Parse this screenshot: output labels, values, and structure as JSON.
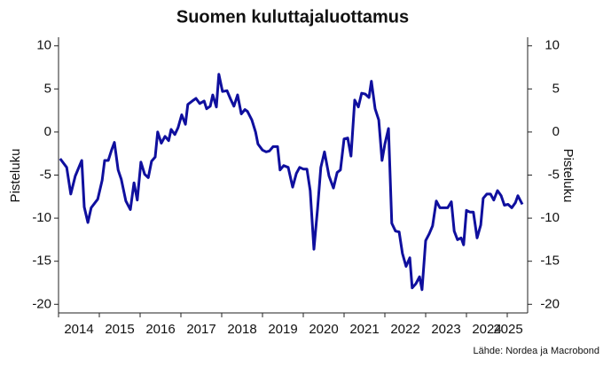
{
  "chart_data": {
    "type": "line",
    "title": "Suomen kuluttajaluottamus",
    "y_label": "Pisteluku",
    "y2_label": "Pisteluku",
    "source": "Lähde: Nordea ja Macrobond",
    "xlim": [
      2014,
      2025.5
    ],
    "xticks": [
      2014,
      2015,
      2016,
      2017,
      2018,
      2019,
      2020,
      2021,
      2022,
      2023,
      2024,
      2025
    ],
    "ylim": [
      -21,
      11
    ],
    "yticks": [
      -20,
      -15,
      -10,
      -5,
      0,
      5,
      10
    ],
    "y2lim": [
      -21,
      11
    ],
    "y2ticks": [
      -20,
      -15,
      -10,
      -5,
      0,
      5,
      10
    ],
    "x": [
      2014.04,
      2014.2,
      2014.3,
      2014.41,
      2014.57,
      2014.63,
      2014.72,
      2014.8,
      2014.96,
      2015.07,
      2015.13,
      2015.22,
      2015.3,
      2015.37,
      2015.46,
      2015.54,
      2015.65,
      2015.76,
      2015.85,
      2015.93,
      2016.02,
      2016.11,
      2016.2,
      2016.28,
      2016.37,
      2016.43,
      2016.52,
      2016.61,
      2016.7,
      2016.76,
      2016.85,
      2016.93,
      2017.02,
      2017.11,
      2017.17,
      2017.28,
      2017.37,
      2017.46,
      2017.57,
      2017.63,
      2017.72,
      2017.78,
      2017.87,
      2017.93,
      2018.02,
      2018.13,
      2018.22,
      2018.3,
      2018.39,
      2018.48,
      2018.57,
      2018.63,
      2018.74,
      2018.83,
      2018.89,
      2019,
      2019.09,
      2019.17,
      2019.26,
      2019.37,
      2019.43,
      2019.52,
      2019.63,
      2019.74,
      2019.83,
      2019.91,
      2020,
      2020.09,
      2020.17,
      2020.26,
      2020.35,
      2020.43,
      2020.52,
      2020.63,
      2020.74,
      2020.83,
      2020.91,
      2021,
      2021.09,
      2021.17,
      2021.26,
      2021.35,
      2021.43,
      2021.52,
      2021.61,
      2021.67,
      2021.76,
      2021.85,
      2021.93,
      2022,
      2022.09,
      2022.17,
      2022.26,
      2022.35,
      2022.43,
      2022.52,
      2022.61,
      2022.67,
      2022.76,
      2022.85,
      2022.91,
      2023,
      2023.09,
      2023.17,
      2023.26,
      2023.35,
      2023.43,
      2023.54,
      2023.63,
      2023.7,
      2023.78,
      2023.87,
      2023.93,
      2024,
      2024.09,
      2024.17,
      2024.26,
      2024.35,
      2024.41,
      2024.5,
      2024.59,
      2024.67,
      2024.76,
      2024.85,
      2024.93,
      2025.02,
      2025.11,
      2025.2,
      2025.26,
      2025.37
    ],
    "series": [
      {
        "color": "#0f0f9e",
        "values": [
          -3.1,
          -4.1,
          -7.2,
          -5.1,
          -3.3,
          -8.7,
          -10.5,
          -8.8,
          -7.8,
          -5.6,
          -3.3,
          -3.3,
          -2.1,
          -1.2,
          -4.4,
          -5.5,
          -8.0,
          -9.0,
          -5.9,
          -7.9,
          -3.5,
          -4.9,
          -5.3,
          -3.4,
          -2.9,
          0,
          -1.3,
          -0.5,
          -1.0,
          0.3,
          -0.3,
          0.5,
          2.0,
          0.9,
          3.2,
          3.6,
          3.9,
          3.3,
          3.6,
          2.7,
          3.0,
          4.3,
          2.9,
          6.7,
          4.7,
          4.8,
          3.8,
          3.0,
          4.3,
          2.1,
          2.6,
          2.4,
          1.4,
          0,
          -1.4,
          -2.1,
          -2.3,
          -2.2,
          -1.7,
          -1.7,
          -4.4,
          -3.9,
          -4.1,
          -6.4,
          -4.8,
          -4.1,
          -4.3,
          -4.3,
          -6.8,
          -13.6,
          -8.9,
          -4.1,
          -2.3,
          -5.1,
          -6.5,
          -4.7,
          -4.4,
          -0.8,
          -0.7,
          -2.8,
          3.7,
          2.9,
          4.5,
          4.4,
          4.0,
          5.9,
          2.7,
          1.4,
          -3.3,
          -1.4,
          0.4,
          -10.6,
          -11.5,
          -11.6,
          -14.1,
          -15.6,
          -14.6,
          -18.1,
          -17.6,
          -16.8,
          -18.3,
          -12.6,
          -11.8,
          -10.9,
          -8.0,
          -8.8,
          -8.8,
          -8.8,
          -8.1,
          -11.5,
          -12.5,
          -12.3,
          -13.1,
          -9.1,
          -9.3,
          -9.3,
          -12.3,
          -10.8,
          -7.7,
          -7.2,
          -7.2,
          -7.9,
          -6.8,
          -7.4,
          -8.5,
          -8.4,
          -8.8,
          -8.2,
          -7.4,
          -8.4
        ]
      }
    ]
  }
}
